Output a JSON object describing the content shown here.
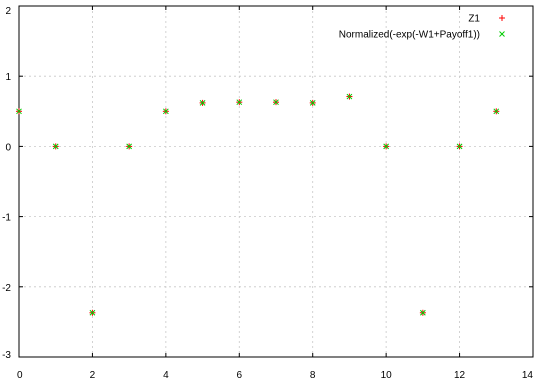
{
  "chart_data": {
    "type": "scatter",
    "title": "",
    "xlabel": "",
    "ylabel": "",
    "xlim": [
      0,
      14
    ],
    "ylim": [
      -3,
      2
    ],
    "xticks": [
      0,
      2,
      4,
      6,
      8,
      10,
      12,
      14
    ],
    "yticks": [
      -3,
      -2,
      -1,
      0,
      1,
      2
    ],
    "grid": true,
    "legend_position": "top-right",
    "x": [
      0,
      1,
      2,
      3,
      4,
      5,
      6,
      7,
      8,
      9,
      10,
      11,
      12,
      13
    ],
    "series": [
      {
        "name": "Z1",
        "marker": "plus",
        "color": "#ff0000",
        "values": [
          0.5,
          0.0,
          -2.37,
          0.0,
          0.5,
          0.62,
          0.63,
          0.63,
          0.62,
          0.71,
          0.0,
          -2.37,
          0.0,
          0.5
        ]
      },
      {
        "name": "Normalized(-exp(-W1+Payoff1))",
        "marker": "cross",
        "color": "#00cc00",
        "values": [
          0.5,
          0.0,
          -2.37,
          0.0,
          0.5,
          0.62,
          0.63,
          0.63,
          0.62,
          0.71,
          0.0,
          -2.37,
          0.0,
          0.5
        ]
      }
    ]
  }
}
